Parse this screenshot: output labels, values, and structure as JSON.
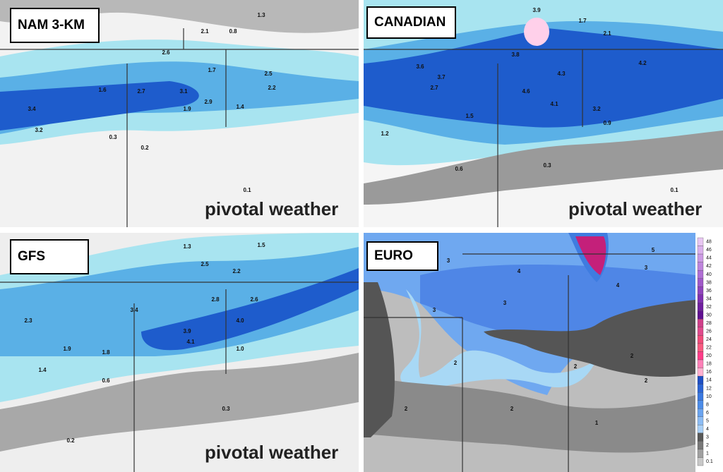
{
  "panels": [
    {
      "title": "NAM 3-KM",
      "watermark": "pivotal weather",
      "labels": [
        "1.3",
        "2.1",
        "0.8",
        "2.6",
        "1.7",
        "2.7",
        "2.5",
        "3.1",
        "2.9",
        "1.9",
        "3.4",
        "3.2",
        "1.6",
        "2.2",
        "1.4",
        "0.3",
        "0.2",
        "0.1"
      ]
    },
    {
      "title": "CANADIAN",
      "watermark": "pivotal weather",
      "labels": [
        "3.9",
        "1.7",
        "2.1",
        "3.7",
        "3.6",
        "3.8",
        "4.3",
        "4.2",
        "4.6",
        "4.1",
        "3.2",
        "2.7",
        "1.5",
        "1.2",
        "0.9",
        "0.6",
        "0.3",
        "0.1"
      ]
    },
    {
      "title": "GFS",
      "watermark": "pivotal weather",
      "labels": [
        "1.3",
        "2.5",
        "2.2",
        "1.5",
        "3.4",
        "2.8",
        "3.9",
        "4.1",
        "4.0",
        "2.6",
        "2.3",
        "1.9",
        "1.8",
        "1.4",
        "1.0",
        "0.6",
        "0.3",
        "0.2"
      ]
    },
    {
      "title": "EURO",
      "labels": [
        "3",
        "4",
        "4",
        "5",
        "3",
        "2",
        "2",
        "2",
        "3",
        "2",
        "2",
        "1",
        "3",
        "2"
      ]
    }
  ],
  "colorbar": {
    "ticks": [
      "48",
      "46",
      "44",
      "42",
      "40",
      "38",
      "36",
      "34",
      "32",
      "30",
      "28",
      "26",
      "24",
      "22",
      "20",
      "18",
      "16",
      "14",
      "12",
      "10",
      "8",
      "6",
      "5",
      "4",
      "3",
      "2",
      "1",
      "0.1"
    ]
  }
}
